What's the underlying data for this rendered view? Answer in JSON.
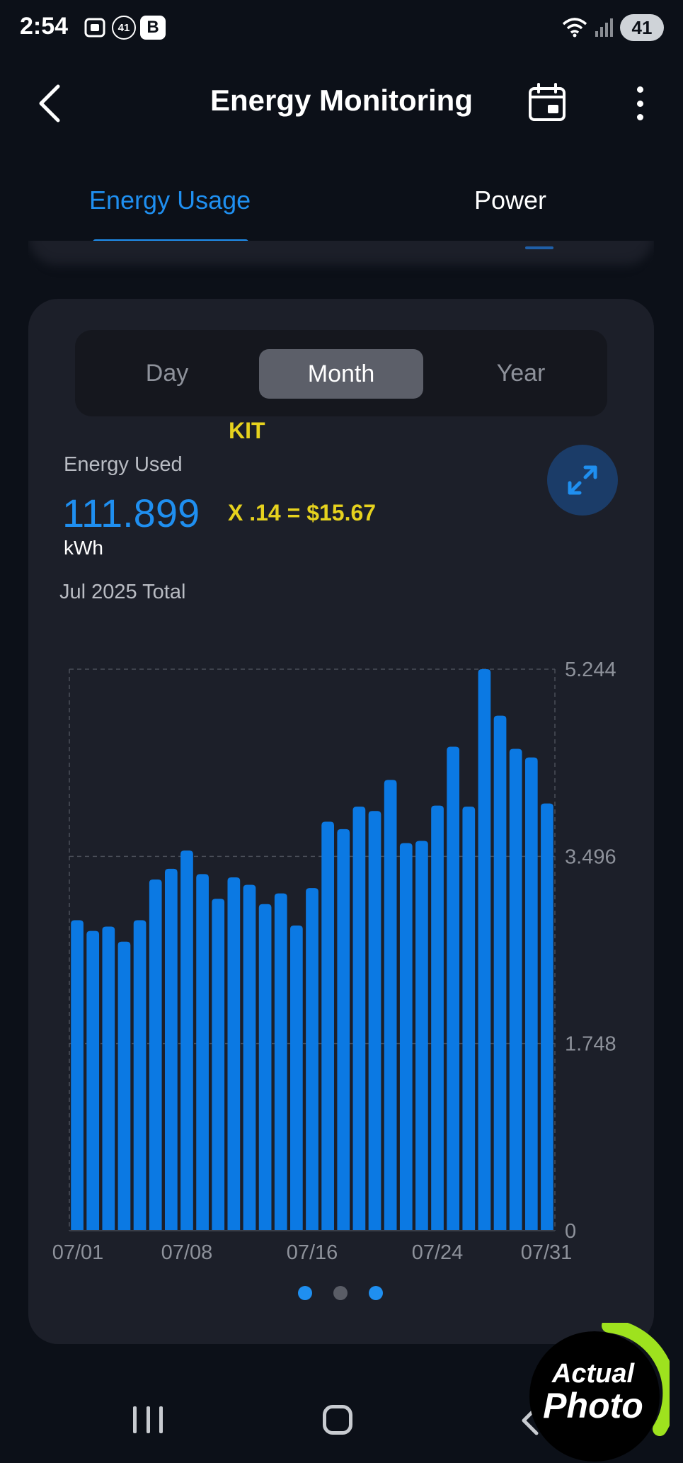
{
  "status_bar": {
    "time": "2:54",
    "notification_count": "41",
    "badge_letter": "B",
    "battery": "41"
  },
  "header": {
    "title": "Energy Monitoring"
  },
  "tabs": [
    {
      "label": "Energy Usage",
      "active": true
    },
    {
      "label": "Power",
      "active": false
    }
  ],
  "period_selector": {
    "options": [
      "Day",
      "Month",
      "Year"
    ],
    "selected": "Month"
  },
  "annotations": {
    "kit": "KIT",
    "cost": "X .14 = $15.67"
  },
  "summary": {
    "label": "Energy Used",
    "value": "111.899",
    "unit": "kWh",
    "period_label": "Jul 2025 Total"
  },
  "pager": {
    "dots": 3
  },
  "watermark": {
    "line1": "Actual",
    "line2": "Photo"
  },
  "colors": {
    "accent": "#1f8ff0",
    "bar": "#0b79e3",
    "annotation": "#e6d21e",
    "card": "#1c1f29",
    "background": "#0c1018"
  },
  "chart_data": {
    "type": "bar",
    "categories": [
      "07/01",
      "07/02",
      "07/03",
      "07/04",
      "07/05",
      "07/06",
      "07/07",
      "07/08",
      "07/09",
      "07/10",
      "07/11",
      "07/12",
      "07/13",
      "07/14",
      "07/15",
      "07/16",
      "07/17",
      "07/18",
      "07/19",
      "07/20",
      "07/21",
      "07/22",
      "07/23",
      "07/24",
      "07/25",
      "07/26",
      "07/27",
      "07/28",
      "07/29",
      "07/30",
      "07/31"
    ],
    "values": [
      2.9,
      2.8,
      2.84,
      2.7,
      2.9,
      3.28,
      3.38,
      3.55,
      3.33,
      3.1,
      3.3,
      3.23,
      3.05,
      3.15,
      2.85,
      3.2,
      3.82,
      3.75,
      3.96,
      3.92,
      4.21,
      3.62,
      3.64,
      3.97,
      4.52,
      3.96,
      5.244,
      4.81,
      4.5,
      4.42,
      3.99
    ],
    "x_tick_labels": [
      "07/01",
      "07/08",
      "07/16",
      "07/24",
      "07/31"
    ],
    "y_tick_labels": [
      "0",
      "1.748",
      "3.496",
      "5.244"
    ],
    "ylim": [
      0,
      5.244
    ],
    "xlabel": "",
    "ylabel": "",
    "grid": true
  }
}
